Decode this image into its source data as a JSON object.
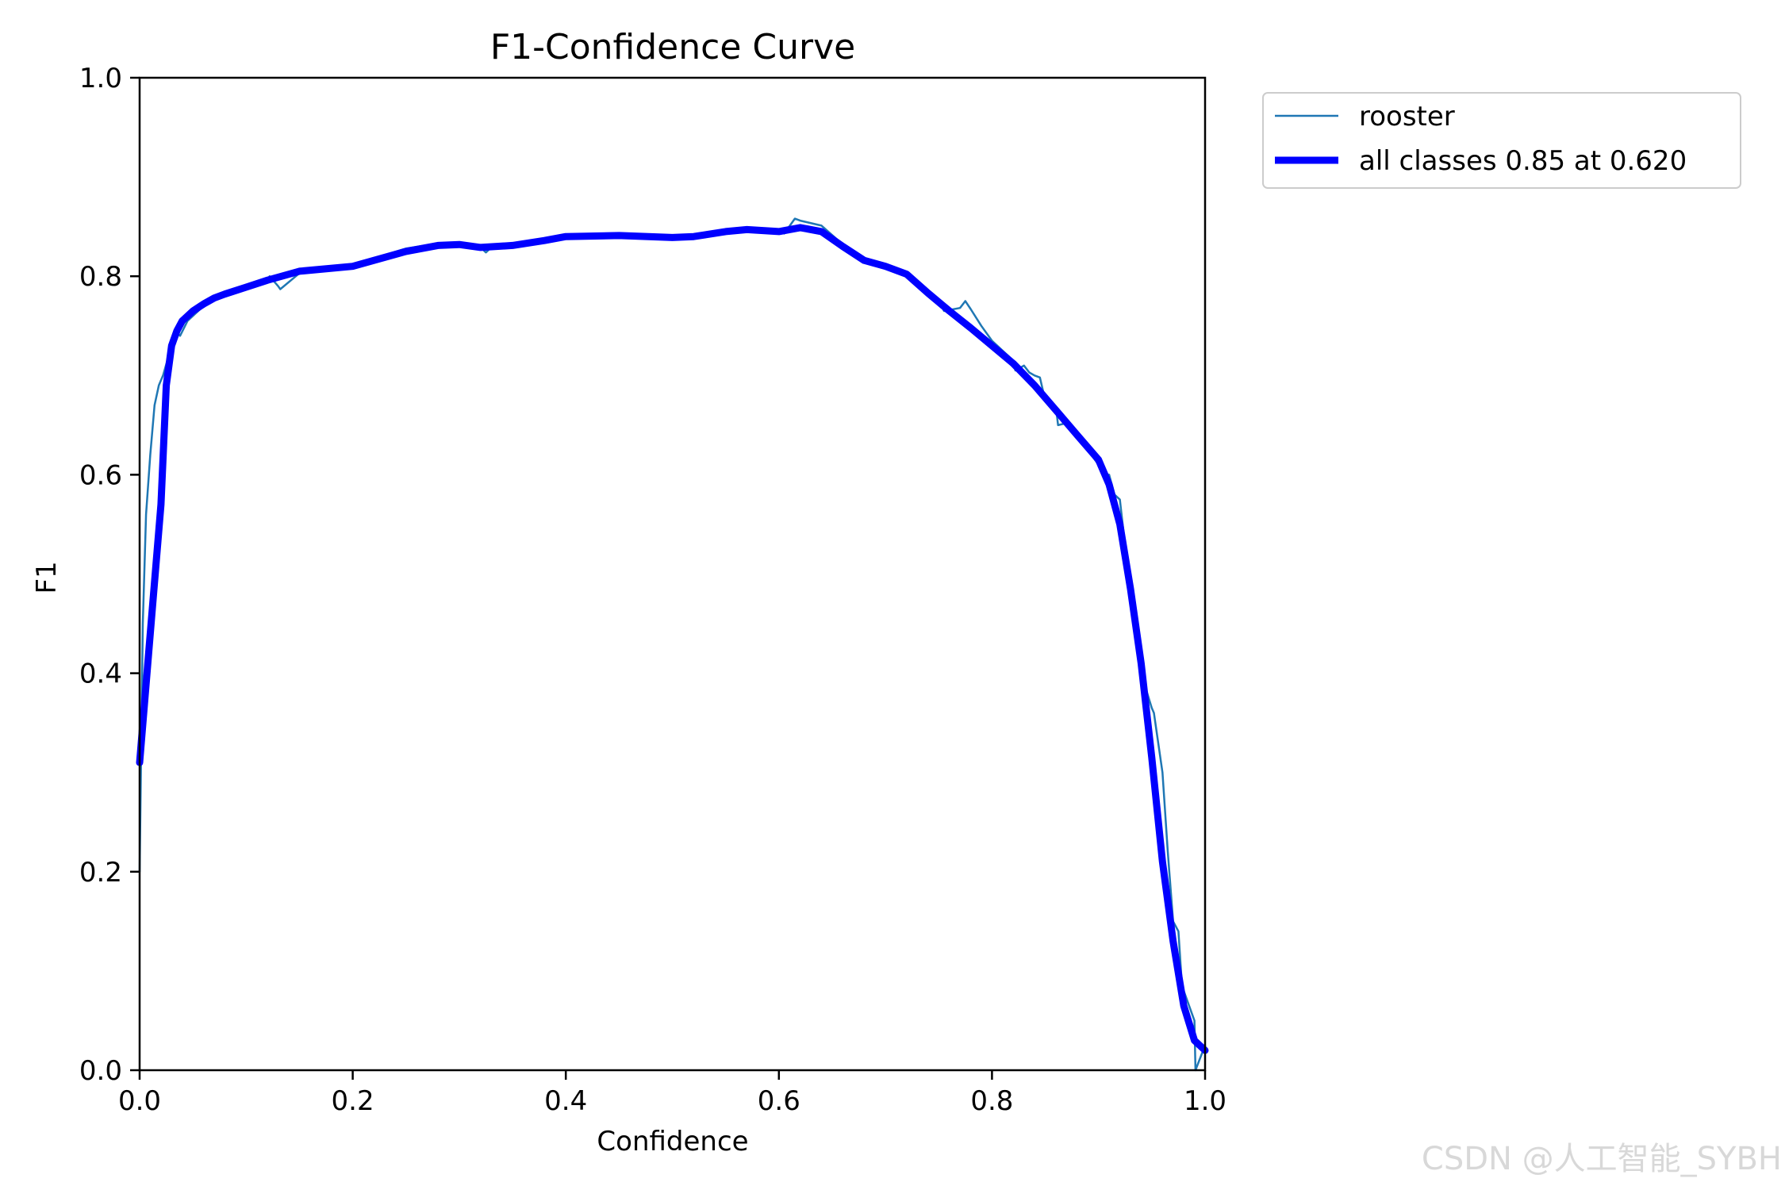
{
  "chart_data": {
    "type": "line",
    "title": "F1-Confidence Curve",
    "xlabel": "Confidence",
    "ylabel": "F1",
    "xlim": [
      0.0,
      1.0
    ],
    "ylim": [
      0.0,
      1.0
    ],
    "xticks": [
      "0.0",
      "0.2",
      "0.4",
      "0.6",
      "0.8",
      "1.0"
    ],
    "yticks": [
      "0.0",
      "0.2",
      "0.4",
      "0.6",
      "0.8",
      "1.0"
    ],
    "grid": false,
    "legend_position": "outside top-right",
    "series": [
      {
        "name": "rooster",
        "color": "#1f77b4",
        "style": "thin",
        "x": [
          0.0,
          0.003,
          0.006,
          0.01,
          0.014,
          0.018,
          0.022,
          0.026,
          0.03,
          0.034,
          0.038,
          0.045,
          0.055,
          0.065,
          0.08,
          0.1,
          0.12,
          0.122,
          0.13,
          0.132,
          0.15,
          0.18,
          0.2,
          0.22,
          0.25,
          0.28,
          0.3,
          0.32,
          0.325,
          0.33,
          0.35,
          0.38,
          0.4,
          0.41,
          0.45,
          0.5,
          0.53,
          0.56,
          0.58,
          0.6,
          0.605,
          0.615,
          0.62,
          0.64,
          0.66,
          0.68,
          0.7,
          0.72,
          0.73,
          0.74,
          0.75,
          0.755,
          0.77,
          0.775,
          0.78,
          0.79,
          0.8,
          0.81,
          0.82,
          0.822,
          0.83,
          0.835,
          0.84,
          0.845,
          0.85,
          0.86,
          0.862,
          0.87,
          0.88,
          0.9,
          0.905,
          0.91,
          0.915,
          0.92,
          0.93,
          0.94,
          0.95,
          0.952,
          0.96,
          0.965,
          0.97,
          0.975,
          0.978,
          0.98,
          0.99,
          0.991,
          1.0
        ],
        "y": [
          0.2,
          0.45,
          0.56,
          0.62,
          0.67,
          0.69,
          0.7,
          0.715,
          0.73,
          0.745,
          0.74,
          0.755,
          0.765,
          0.775,
          0.78,
          0.79,
          0.795,
          0.8,
          0.79,
          0.787,
          0.803,
          0.807,
          0.81,
          0.818,
          0.828,
          0.833,
          0.831,
          0.829,
          0.824,
          0.829,
          0.831,
          0.836,
          0.838,
          0.842,
          0.841,
          0.84,
          0.843,
          0.847,
          0.845,
          0.846,
          0.843,
          0.858,
          0.856,
          0.851,
          0.832,
          0.815,
          0.81,
          0.802,
          0.795,
          0.785,
          0.775,
          0.765,
          0.768,
          0.775,
          0.767,
          0.75,
          0.735,
          0.725,
          0.715,
          0.705,
          0.71,
          0.703,
          0.7,
          0.698,
          0.675,
          0.668,
          0.65,
          0.652,
          0.64,
          0.61,
          0.6,
          0.6,
          0.58,
          0.575,
          0.48,
          0.4,
          0.365,
          0.36,
          0.3,
          0.22,
          0.15,
          0.14,
          0.09,
          0.08,
          0.05,
          0.0,
          0.025
        ]
      },
      {
        "name": "all classes 0.85 at 0.620",
        "color": "#0000ff",
        "style": "thick",
        "x": [
          0.0,
          0.01,
          0.02,
          0.025,
          0.03,
          0.035,
          0.04,
          0.05,
          0.06,
          0.07,
          0.08,
          0.1,
          0.12,
          0.15,
          0.2,
          0.25,
          0.28,
          0.3,
          0.32,
          0.35,
          0.38,
          0.4,
          0.45,
          0.5,
          0.52,
          0.55,
          0.57,
          0.6,
          0.62,
          0.64,
          0.66,
          0.68,
          0.7,
          0.72,
          0.74,
          0.76,
          0.78,
          0.8,
          0.82,
          0.84,
          0.86,
          0.88,
          0.9,
          0.91,
          0.92,
          0.93,
          0.94,
          0.95,
          0.96,
          0.97,
          0.98,
          0.99,
          1.0
        ],
        "y": [
          0.31,
          0.44,
          0.57,
          0.69,
          0.73,
          0.745,
          0.755,
          0.765,
          0.772,
          0.778,
          0.782,
          0.789,
          0.796,
          0.805,
          0.81,
          0.825,
          0.831,
          0.832,
          0.829,
          0.831,
          0.836,
          0.84,
          0.841,
          0.839,
          0.84,
          0.845,
          0.847,
          0.845,
          0.849,
          0.845,
          0.83,
          0.816,
          0.81,
          0.802,
          0.783,
          0.765,
          0.748,
          0.73,
          0.712,
          0.69,
          0.665,
          0.64,
          0.615,
          0.59,
          0.55,
          0.485,
          0.41,
          0.315,
          0.21,
          0.13,
          0.065,
          0.03,
          0.02
        ]
      }
    ]
  },
  "watermark": "CSDN @人工智能_SYBH"
}
